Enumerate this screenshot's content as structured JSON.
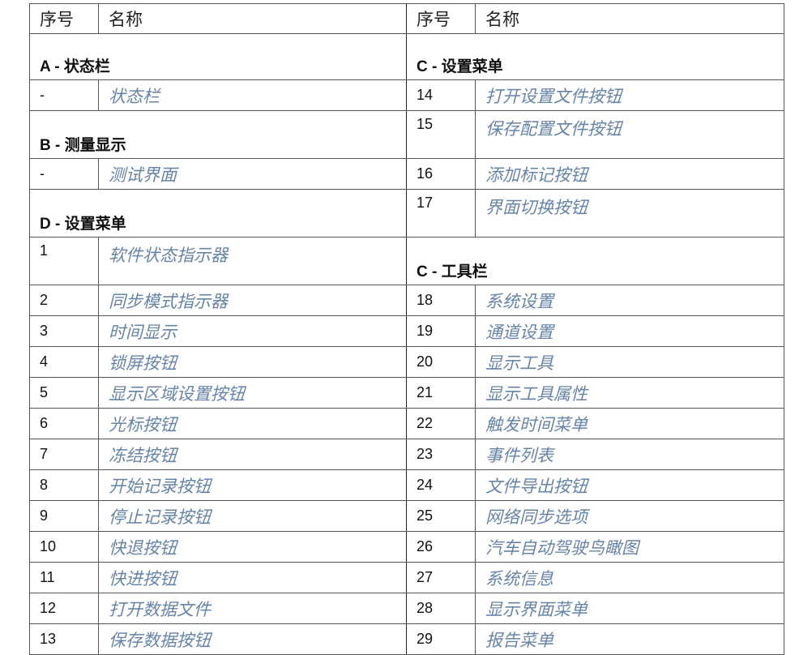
{
  "header": {
    "col_no": "序号",
    "col_name": "名称"
  },
  "sections": {
    "a": "A - 状态栏",
    "b": "B - 测量显示",
    "d": "D - 设置菜单",
    "c_settings": "C - 设置菜单",
    "c_toolbar": "C - 工具栏"
  },
  "left": [
    {
      "no": "-",
      "name": "状态栏"
    },
    {
      "no": "-",
      "name": "测试界面"
    },
    {
      "no": "1",
      "name": "软件状态指示器"
    },
    {
      "no": "2",
      "name": "同步模式指示器"
    },
    {
      "no": "3",
      "name": "时间显示"
    },
    {
      "no": "4",
      "name": "锁屏按钮"
    },
    {
      "no": "5",
      "name": "显示区域设置按钮"
    },
    {
      "no": "6",
      "name": "光标按钮"
    },
    {
      "no": "7",
      "name": "冻结按钮"
    },
    {
      "no": "8",
      "name": "开始记录按钮"
    },
    {
      "no": "9",
      "name": "停止记录按钮"
    },
    {
      "no": "10",
      "name": "快退按钮"
    },
    {
      "no": "11",
      "name": "快进按钮"
    },
    {
      "no": "12",
      "name": "打开数据文件"
    },
    {
      "no": "13",
      "name": "保存数据按钮"
    }
  ],
  "right": [
    {
      "no": "14",
      "name": "打开设置文件按钮"
    },
    {
      "no": "15",
      "name": "保存配置文件按钮"
    },
    {
      "no": "16",
      "name": "添加标记按钮"
    },
    {
      "no": "17",
      "name": "界面切换按钮"
    },
    {
      "no": "18",
      "name": "系统设置"
    },
    {
      "no": "19",
      "name": "通道设置"
    },
    {
      "no": "20",
      "name": "显示工具"
    },
    {
      "no": "21",
      "name": "显示工具属性"
    },
    {
      "no": "22",
      "name": "触发时间菜单"
    },
    {
      "no": "23",
      "name": "事件列表"
    },
    {
      "no": "24",
      "name": "文件导出按钮"
    },
    {
      "no": "25",
      "name": "网络同步选项"
    },
    {
      "no": "26",
      "name": "汽车自动驾驶鸟瞰图"
    },
    {
      "no": "27",
      "name": "系统信息"
    },
    {
      "no": "28",
      "name": "显示界面菜单"
    },
    {
      "no": "29",
      "name": "报告菜单"
    }
  ],
  "colors": {
    "name_text": "#6784a6",
    "border": "#555555"
  }
}
